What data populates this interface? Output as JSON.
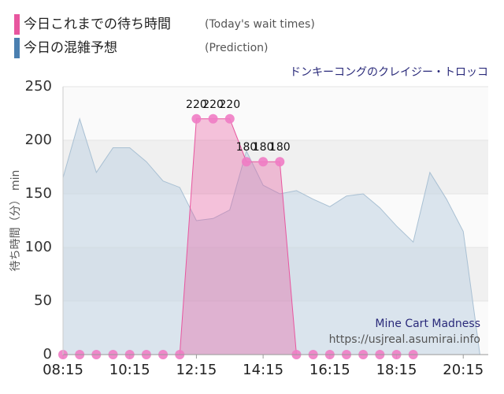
{
  "chart_data": {
    "type": "area",
    "title": "ドンキーコングのクレイジー・トロッコ",
    "y_label": "待ち時間（分） min",
    "annotations": [
      "Mine Cart Madness",
      "https://usjreal.asumirai.info"
    ],
    "xlim": [
      495,
      1260
    ],
    "ylim": [
      0,
      250
    ],
    "xticks": [
      {
        "value": 495,
        "label": "08:15"
      },
      {
        "value": 615,
        "label": "10:15"
      },
      {
        "value": 735,
        "label": "12:15"
      },
      {
        "value": 855,
        "label": "14:15"
      },
      {
        "value": 975,
        "label": "16:15"
      },
      {
        "value": 1095,
        "label": "18:15"
      },
      {
        "value": 1215,
        "label": "20:15"
      }
    ],
    "yticks": [
      0,
      50,
      100,
      150,
      200,
      250
    ],
    "grid": true,
    "series": [
      {
        "name": "今日これまでの待ち時間",
        "note": "(Today's wait times)",
        "color": "#e8569f",
        "x": [
          495,
          525,
          555,
          585,
          615,
          645,
          675,
          705,
          735,
          765,
          795,
          825,
          855,
          885,
          915,
          945,
          975,
          1005,
          1035,
          1065,
          1095,
          1125
        ],
        "values": [
          0,
          0,
          0,
          0,
          0,
          0,
          0,
          0,
          220,
          220,
          220,
          180,
          180,
          180,
          0,
          0,
          0,
          0,
          0,
          0,
          0,
          0
        ]
      },
      {
        "name": "今日の混雑予想",
        "note": "(Prediction)",
        "color": "#4a7fb0",
        "x": [
          495,
          525,
          555,
          585,
          615,
          645,
          675,
          705,
          735,
          765,
          795,
          825,
          855,
          885,
          915,
          945,
          975,
          1005,
          1035,
          1065,
          1095,
          1125,
          1155,
          1185,
          1215,
          1245
        ],
        "values": [
          165,
          220,
          170,
          193,
          193,
          180,
          162,
          156,
          125,
          127,
          135,
          190,
          158,
          150,
          153,
          145,
          138,
          148,
          150,
          137,
          120,
          105,
          170,
          145,
          115,
          0
        ]
      }
    ]
  }
}
